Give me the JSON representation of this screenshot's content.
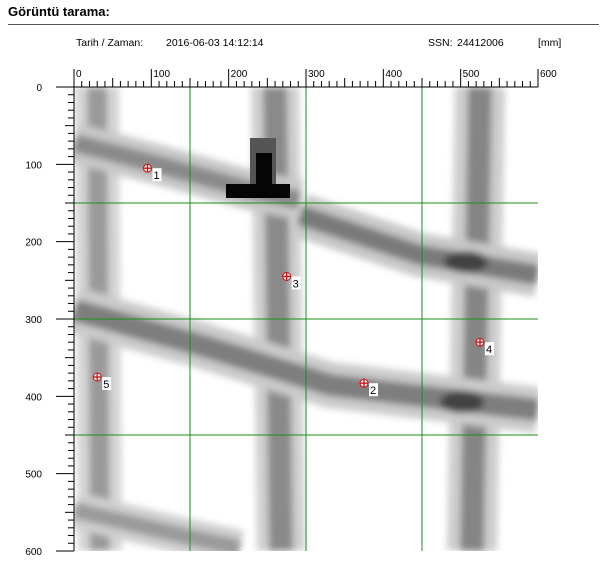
{
  "header": {
    "title": "Görüntü tarama:",
    "date_label": "Tarih / Zaman:",
    "date_value": "2016-06-03 14:12:14",
    "ssn_label": "SSN:",
    "ssn_value": "24412006",
    "unit": "[mm]"
  },
  "scan": {
    "x_ticks": [
      "0",
      "100",
      "200",
      "300",
      "400",
      "500",
      "600"
    ],
    "y_ticks": [
      "0",
      "100",
      "200",
      "300",
      "400",
      "500",
      "600"
    ],
    "x_range": [
      0,
      600
    ],
    "y_range": [
      0,
      600
    ],
    "grid_x": [
      150,
      300,
      450
    ],
    "grid_y": [
      150,
      300,
      450
    ],
    "grid_color": "#1a8f1a",
    "markers": [
      {
        "label": "1",
        "x": 95,
        "y": 105
      },
      {
        "label": "2",
        "x": 375,
        "y": 383
      },
      {
        "label": "3",
        "x": 275,
        "y": 245
      },
      {
        "label": "4",
        "x": 525,
        "y": 330
      },
      {
        "label": "5",
        "x": 30,
        "y": 375
      }
    ],
    "marker_color": "#d01010"
  }
}
